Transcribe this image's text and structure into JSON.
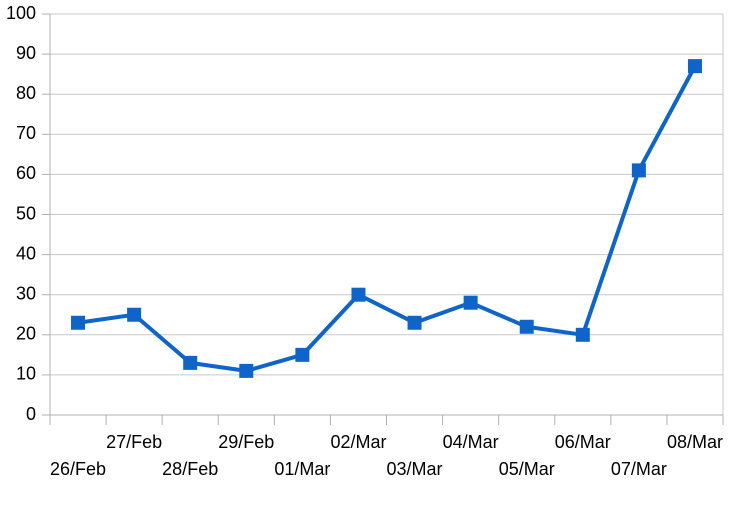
{
  "chart_data": {
    "type": "line",
    "categories": [
      "26/Feb",
      "27/Feb",
      "28/Feb",
      "29/Feb",
      "01/Mar",
      "02/Mar",
      "03/Mar",
      "04/Mar",
      "05/Mar",
      "06/Mar",
      "07/Mar",
      "08/Mar"
    ],
    "values": [
      23,
      25,
      13,
      11,
      15,
      30,
      23,
      28,
      22,
      20,
      61,
      87
    ],
    "color": "#0e64c8",
    "ylim": [
      0,
      100
    ],
    "yticks": [
      0,
      10,
      20,
      30,
      40,
      50,
      60,
      70,
      80,
      90,
      100
    ],
    "grid": true
  }
}
